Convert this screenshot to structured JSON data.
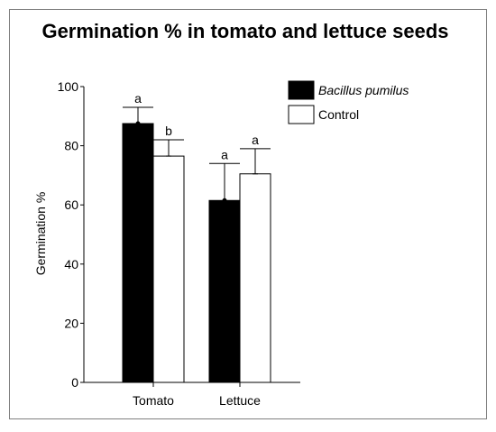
{
  "chart_data": {
    "type": "bar",
    "title": "Germination % in tomato and lettuce seeds",
    "xlabel": "",
    "ylabel": "Germination %",
    "ylim": [
      0,
      100
    ],
    "yticks": [
      "0",
      "20",
      "40",
      "60",
      "80",
      "100"
    ],
    "categories": [
      "Tomato",
      "Lettuce"
    ],
    "series": [
      {
        "name": "Bacillus pumilus",
        "color": "#000000",
        "values": [
          87.5,
          61.5
        ],
        "error": [
          5.5,
          12.5
        ],
        "labels": [
          "a",
          "a"
        ]
      },
      {
        "name": "Control",
        "color": "#ffffff",
        "values": [
          76.5,
          70.5
        ],
        "error": [
          5.5,
          8.5
        ],
        "labels": [
          "b",
          "a"
        ]
      }
    ],
    "legend_position": "top-right",
    "grid": false
  }
}
